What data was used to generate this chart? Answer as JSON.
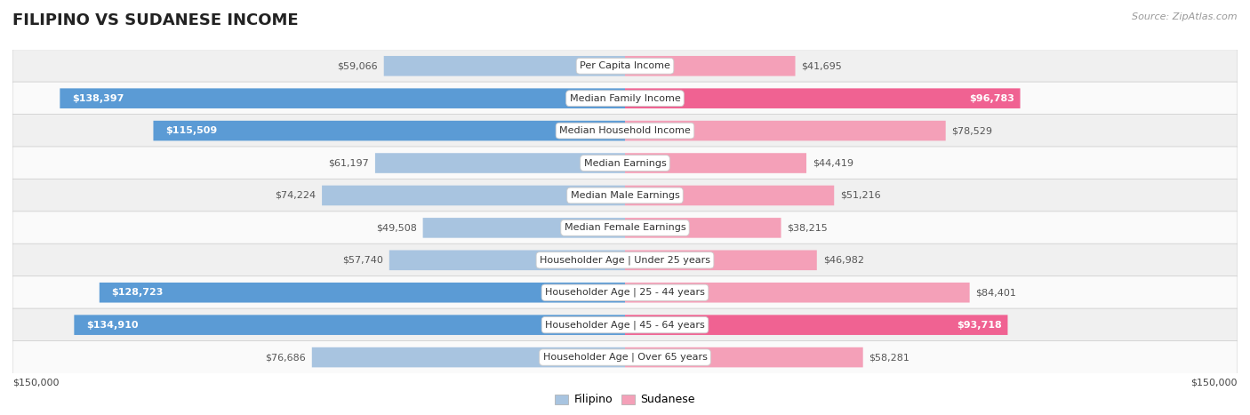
{
  "title": "FILIPINO VS SUDANESE INCOME",
  "source": "Source: ZipAtlas.com",
  "categories": [
    "Per Capita Income",
    "Median Family Income",
    "Median Household Income",
    "Median Earnings",
    "Median Male Earnings",
    "Median Female Earnings",
    "Householder Age | Under 25 years",
    "Householder Age | 25 - 44 years",
    "Householder Age | 45 - 64 years",
    "Householder Age | Over 65 years"
  ],
  "filipino_values": [
    59066,
    138397,
    115509,
    61197,
    74224,
    49508,
    57740,
    128723,
    134910,
    76686
  ],
  "sudanese_values": [
    41695,
    96783,
    78529,
    44419,
    51216,
    38215,
    46982,
    84401,
    93718,
    58281
  ],
  "max_value": 150000,
  "filipino_color_light": "#a8c4e0",
  "filipino_color_dark": "#5b9bd5",
  "sudanese_color_light": "#f4a0b8",
  "sudanese_color_dark": "#f06292",
  "filipino_label": "Filipino",
  "sudanese_label": "Sudanese",
  "row_bg_odd": "#f0f0f0",
  "row_bg_even": "#fafafa",
  "axis_label_left": "$150,000",
  "axis_label_right": "$150,000",
  "title_fontsize": 13,
  "source_fontsize": 8,
  "cat_label_fontsize": 8,
  "value_fontsize": 8,
  "bar_height": 0.62,
  "large_threshold": 90000,
  "medium_threshold": 30000
}
